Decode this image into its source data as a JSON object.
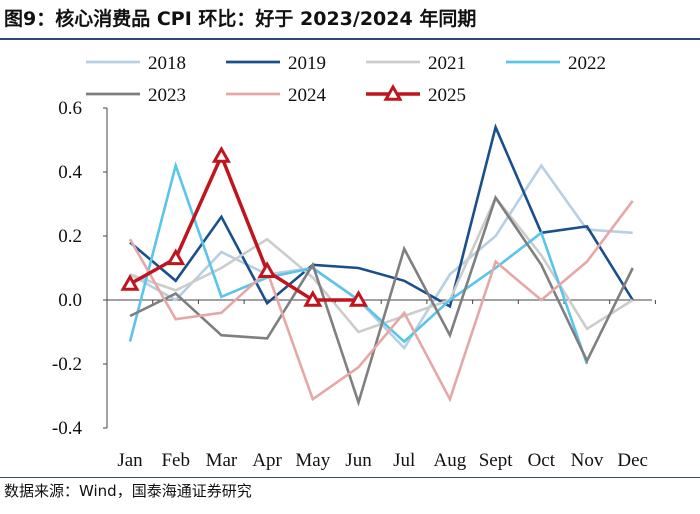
{
  "header": {
    "title": "图9：核心消费品 CPI 环比：好于 2023/2024 年同期"
  },
  "footer": {
    "source": "数据来源：Wind，国泰海通证券研究"
  },
  "chart_data": {
    "type": "line",
    "title": "图9：核心消费品 CPI 环比：好于 2023/2024 年同期",
    "xlabel": "",
    "ylabel": "",
    "categories": [
      "Jan",
      "Feb",
      "Mar",
      "Apr",
      "May",
      "Jun",
      "Jul",
      "Aug",
      "Sept",
      "Oct",
      "Nov",
      "Dec"
    ],
    "ylim": [
      -0.4,
      0.6
    ],
    "yticks": [
      "0.6",
      "0.4",
      "0.2",
      "0.0",
      "-0.2",
      "-0.4"
    ],
    "legend_position": "top",
    "grid": false,
    "series": [
      {
        "name": "2018",
        "color": "#b7cfe3",
        "values": [
          0.08,
          0.0,
          0.15,
          0.08,
          0.1,
          0.0,
          -0.15,
          0.08,
          0.2,
          0.42,
          0.22,
          0.21
        ]
      },
      {
        "name": "2019",
        "color": "#1a4f8b",
        "values": [
          0.18,
          0.06,
          0.26,
          -0.01,
          0.11,
          0.1,
          0.06,
          -0.02,
          0.54,
          0.21,
          0.23,
          0.0
        ]
      },
      {
        "name": "2021",
        "color": "#cccccc",
        "values": [
          0.08,
          0.03,
          0.1,
          0.19,
          0.07,
          -0.1,
          -0.05,
          0.0,
          0.32,
          0.14,
          -0.09,
          0.0
        ]
      },
      {
        "name": "2022",
        "color": "#5bc4ea",
        "values": [
          -0.13,
          0.42,
          0.01,
          0.07,
          0.1,
          0.0,
          -0.13,
          0.0,
          0.1,
          0.21,
          -0.2,
          null
        ]
      },
      {
        "name": "2023",
        "color": "#7f7f7f",
        "values": [
          -0.05,
          0.02,
          -0.11,
          -0.12,
          0.11,
          -0.32,
          0.16,
          -0.11,
          0.32,
          0.11,
          -0.19,
          0.1
        ]
      },
      {
        "name": "2024",
        "color": "#e4a8a8",
        "values": [
          0.19,
          -0.06,
          -0.04,
          0.09,
          -0.31,
          -0.21,
          -0.04,
          -0.31,
          0.12,
          0.0,
          0.12,
          0.31
        ]
      },
      {
        "name": "2025",
        "color": "#c0151e",
        "marker": "triangle",
        "values": [
          0.05,
          0.13,
          0.45,
          0.09,
          0.0,
          0.0,
          null,
          null,
          null,
          null,
          null,
          null
        ]
      }
    ]
  }
}
